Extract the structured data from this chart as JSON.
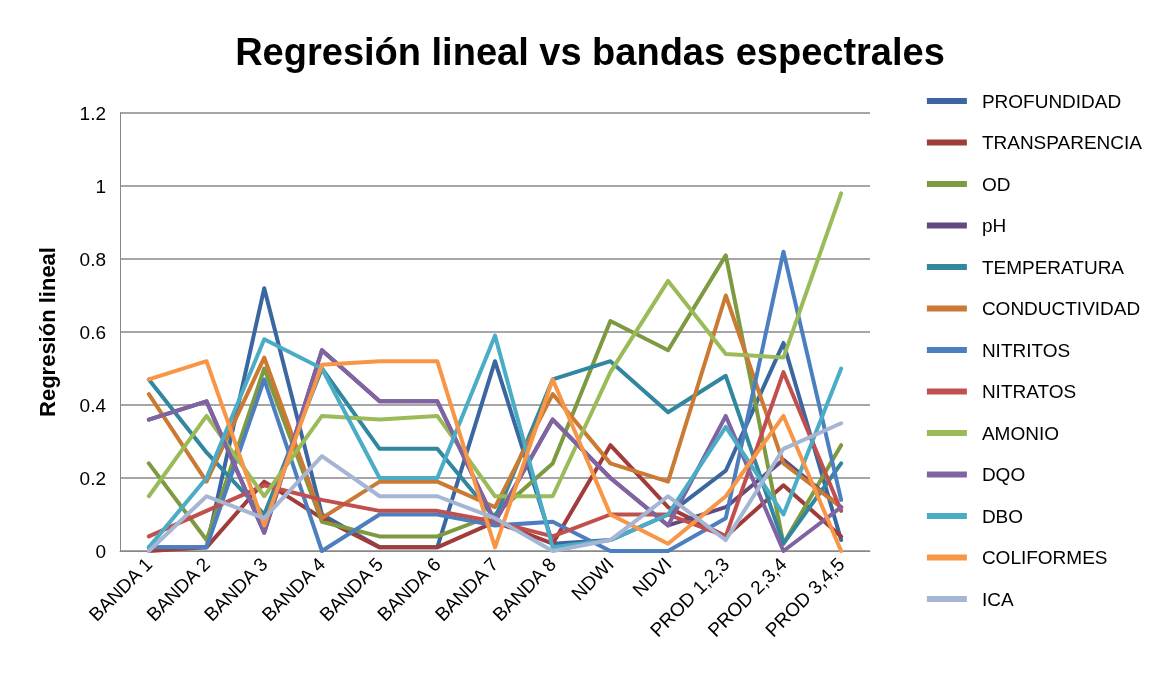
{
  "chart_data": {
    "type": "line",
    "title": "Regresión lineal vs bandas espectrales",
    "ylabel": "Regresión lineal",
    "categories": [
      "BANDA 1",
      "BANDA 2",
      "BANDA 3",
      "BANDA 4",
      "BANDA 5",
      "BANDA 6",
      "BANDA 7",
      "BANDA 8",
      "NDWI",
      "NDVI",
      "PROD 1,2,3",
      "PROD 2,3,4",
      "PROD 3,4,5"
    ],
    "ylim": [
      0,
      1.2
    ],
    "yticks": [
      0,
      0.2,
      0.4,
      0.6,
      0.8,
      1,
      1.2
    ],
    "grid": "y",
    "legend": "right",
    "marker": "none",
    "line_style": "solid",
    "series": [
      {
        "name": "PROFUNDIDAD",
        "color": "#3a67a0",
        "values": [
          0.01,
          0.01,
          0.72,
          0.1,
          0.01,
          0.01,
          0.52,
          0.02,
          0.03,
          0.1,
          0.22,
          0.57,
          0.03
        ]
      },
      {
        "name": "TRANSPARENCIA",
        "color": "#a03c3a",
        "values": [
          0,
          0.01,
          0.19,
          0.09,
          0.01,
          0.01,
          0.08,
          0.02,
          0.29,
          0.12,
          0.04,
          0.18,
          0.04
        ]
      },
      {
        "name": "OD",
        "color": "#7e9a41",
        "values": [
          0.24,
          0.03,
          0.5,
          0.08,
          0.04,
          0.04,
          0.1,
          0.24,
          0.63,
          0.55,
          0.81,
          0.02,
          0.29
        ]
      },
      {
        "name": "pH",
        "color": "#614a7e",
        "values": [
          0.36,
          0.41,
          0.05,
          0.55,
          0.41,
          0.41,
          0.08,
          0.36,
          0.2,
          0.07,
          0.12,
          0.25,
          0.12
        ]
      },
      {
        "name": "TEMPERATURA",
        "color": "#31879f",
        "values": [
          0.47,
          0.27,
          0.1,
          0.5,
          0.28,
          0.28,
          0.09,
          0.47,
          0.52,
          0.38,
          0.48,
          0.02,
          0.24
        ]
      },
      {
        "name": "CONDUCTIVIDAD",
        "color": "#cb7a33",
        "values": [
          0.43,
          0.19,
          0.53,
          0.09,
          0.19,
          0.19,
          0.12,
          0.43,
          0.24,
          0.19,
          0.7,
          0.24,
          0.12
        ]
      },
      {
        "name": "NITRITOS",
        "color": "#4c7fbf",
        "values": [
          0.01,
          0.01,
          0.47,
          0,
          0.1,
          0.1,
          0.07,
          0.08,
          0,
          0,
          0.09,
          0.82,
          0.14
        ]
      },
      {
        "name": "NITRATOS",
        "color": "#c0504d",
        "values": [
          0.04,
          0.11,
          0.18,
          0.14,
          0.11,
          0.11,
          0.08,
          0.04,
          0.1,
          0.1,
          0.04,
          0.49,
          0.11
        ]
      },
      {
        "name": "AMONIO",
        "color": "#9bbb59",
        "values": [
          0.15,
          0.37,
          0.15,
          0.37,
          0.36,
          0.37,
          0.15,
          0.15,
          0.49,
          0.74,
          0.54,
          0.53,
          0.98
        ]
      },
      {
        "name": "DQO",
        "color": "#8064a2",
        "values": [
          0.36,
          0.41,
          0.05,
          0.55,
          0.41,
          0.41,
          0.08,
          0.36,
          0.2,
          0.07,
          0.37,
          0,
          0.12
        ]
      },
      {
        "name": "DBO",
        "color": "#4bacc6",
        "values": [
          0.01,
          0.2,
          0.58,
          0.5,
          0.2,
          0.2,
          0.59,
          0.01,
          0.03,
          0.1,
          0.34,
          0.1,
          0.5
        ]
      },
      {
        "name": "COLIFORMES",
        "color": "#f79646",
        "values": [
          0.47,
          0.52,
          0.07,
          0.51,
          0.52,
          0.52,
          0.01,
          0.47,
          0.1,
          0.02,
          0.15,
          0.37,
          0
        ]
      },
      {
        "name": "ICA",
        "color": "#a5b5d4",
        "values": [
          0,
          0.15,
          0.09,
          0.26,
          0.15,
          0.15,
          0.09,
          0,
          0.03,
          0.15,
          0.03,
          0.28,
          0.35
        ]
      }
    ]
  }
}
